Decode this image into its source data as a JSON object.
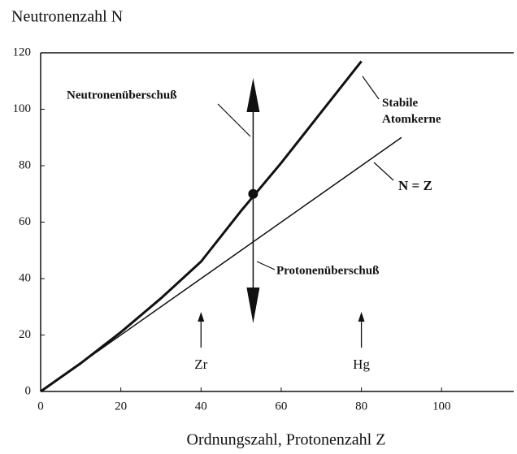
{
  "chart_data": {
    "type": "line",
    "ylabel": "Neutronenzahl N",
    "xlabel": "Ordnungszahl,  Protonenzahl  Z",
    "xlim": [
      0,
      118
    ],
    "ylim": [
      0,
      120
    ],
    "xticks": [
      0,
      20,
      40,
      60,
      80,
      100
    ],
    "yticks": [
      0,
      20,
      40,
      60,
      80,
      100,
      120
    ],
    "series": [
      {
        "name": "Stabile Atomkerne",
        "color": "#111111",
        "x": [
          0,
          10,
          20,
          30,
          40,
          50,
          60,
          70,
          80
        ],
        "values": [
          0,
          10,
          21,
          33,
          46,
          64,
          81,
          99,
          117
        ]
      },
      {
        "name": "N = Z",
        "color": "#111111",
        "x": [
          0,
          90
        ],
        "values": [
          0,
          90
        ]
      }
    ],
    "point": {
      "x": 53,
      "y": 70
    },
    "annotations": [
      "Neutronenüberschuß",
      "Protonenüberschuß"
    ],
    "elements": [
      {
        "label": "Zr",
        "x": 40
      },
      {
        "label": "Hg",
        "x": 80
      }
    ]
  }
}
